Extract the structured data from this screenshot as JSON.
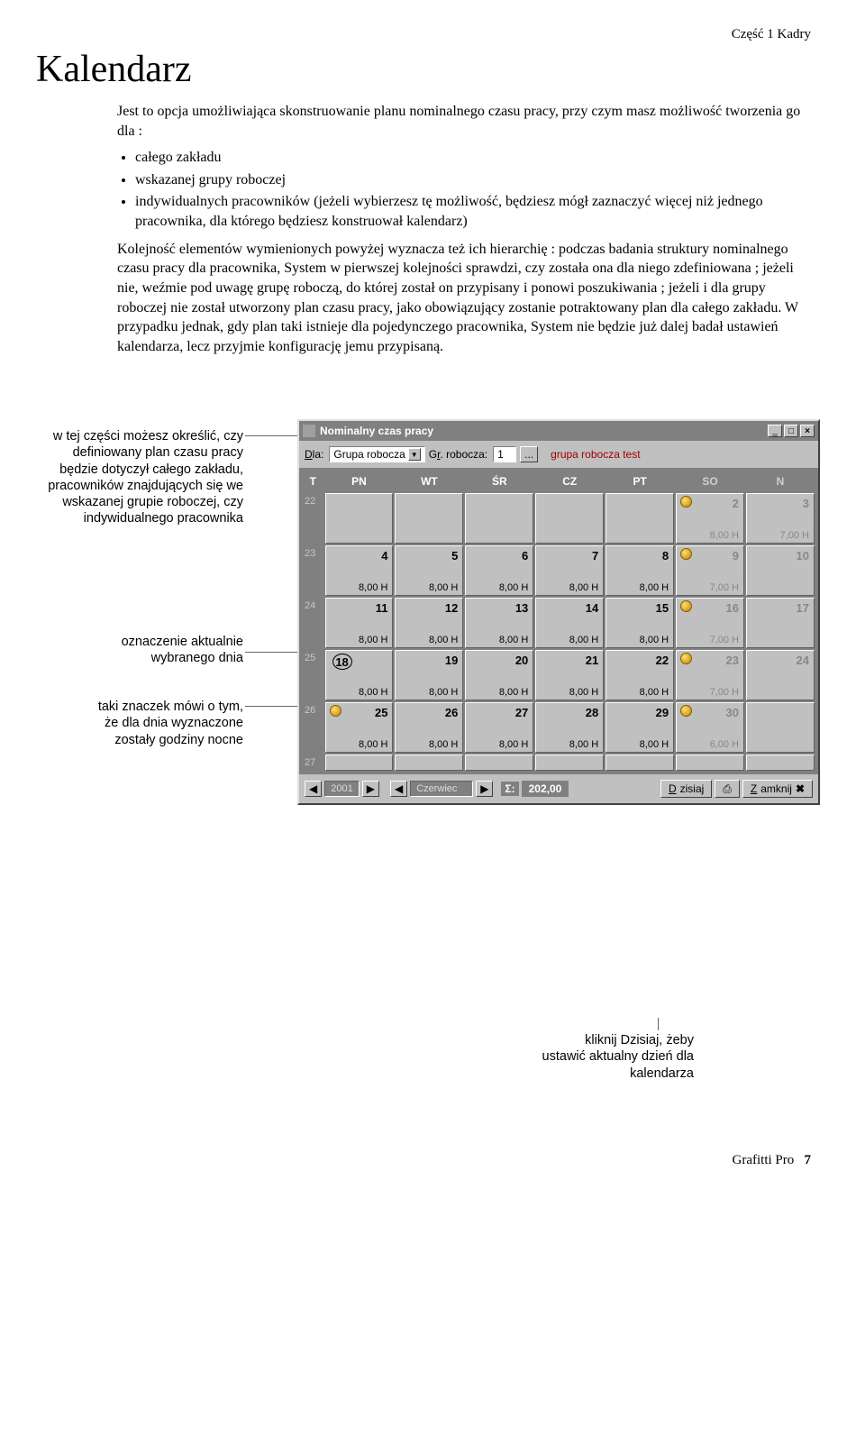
{
  "header": {
    "section": "Część 1 Kadry"
  },
  "title": "Kalendarz",
  "intro": "Jest to opcja umożliwiająca skonstruowanie planu nominalnego czasu pracy, przy czym masz możliwość tworzenia go dla :",
  "bullets": [
    "całego zakładu",
    "wskazanej grupy roboczej",
    "indywidualnych pracowników (jeżeli wybierzesz tę możliwość, będziesz mógł zaznaczyć więcej niż jednego pracownika, dla którego będziesz konstruował kalendarz)"
  ],
  "para": "Kolejność elementów wymienionych powyżej wyznacza też ich hierarchię : podczas badania struktury nominalnego czasu pracy dla pracownika, System w pierwszej kolejności sprawdzi, czy została ona dla niego zdefiniowana ; jeżeli nie, weźmie pod uwagę grupę roboczą, do której został on przypisany i ponowi poszukiwania ; jeżeli i dla grupy roboczej nie został utworzony plan czasu pracy, jako obowiązujący zostanie potraktowany plan dla całego zakładu. W przypadku jednak, gdy plan taki istnieje dla pojedynczego pracownika, System nie będzie już dalej badał ustawień kalendarza, lecz przyjmie konfigurację jemu przypisaną.",
  "callouts": {
    "c1": "w tej części możesz określić, czy definiowany plan czasu pracy będzie dotyczył całego zakładu, pracowników znajdujących się we wskazanej grupie roboczej, czy indywidualnego pracownika",
    "c2": "oznaczenie aktualnie wybranego dnia",
    "c3": "taki znaczek mówi o tym, że dla dnia wyznaczone zostały godziny nocne",
    "c4": "kliknij Dzisiaj, żeby ustawić aktualny dzień dla kalendarza"
  },
  "window": {
    "title": "Nominalny czas pracy",
    "toolbar": {
      "dla_label": "Dla:",
      "dla_value": "Grupa robocza",
      "gr_label": "Gr. robocza:",
      "gr_value": "1",
      "pick": "...",
      "group_name": "grupa robocza test"
    },
    "days_header": [
      "T",
      "PN",
      "WT",
      "ŚR",
      "CZ",
      "PT",
      "SO",
      "N"
    ],
    "weeks": [
      {
        "wk": "22",
        "cells": [
          {
            "num": "",
            "hours": "",
            "wknd": false
          },
          {
            "num": "",
            "hours": "",
            "wknd": false
          },
          {
            "num": "",
            "hours": "",
            "wknd": false
          },
          {
            "num": "",
            "hours": "",
            "wknd": false
          },
          {
            "num": "",
            "hours": "",
            "wknd": false
          },
          {
            "num": "2",
            "hours": "8,00 H",
            "wknd": true,
            "night": true
          },
          {
            "num": "3",
            "hours": "7,00 H",
            "wknd": true
          }
        ]
      },
      {
        "wk": "23",
        "cells": [
          {
            "num": "4",
            "hours": "8,00 H"
          },
          {
            "num": "5",
            "hours": "8,00 H"
          },
          {
            "num": "6",
            "hours": "8,00 H"
          },
          {
            "num": "7",
            "hours": "8,00 H"
          },
          {
            "num": "8",
            "hours": "8,00 H"
          },
          {
            "num": "9",
            "hours": "7,00 H",
            "wknd": true,
            "night": true
          },
          {
            "num": "10",
            "hours": "",
            "wknd": true
          }
        ]
      },
      {
        "wk": "24",
        "cells": [
          {
            "num": "11",
            "hours": "8,00 H"
          },
          {
            "num": "12",
            "hours": "8,00 H"
          },
          {
            "num": "13",
            "hours": "8,00 H"
          },
          {
            "num": "14",
            "hours": "8,00 H"
          },
          {
            "num": "15",
            "hours": "8,00 H"
          },
          {
            "num": "16",
            "hours": "7,00 H",
            "wknd": true,
            "night": true
          },
          {
            "num": "17",
            "hours": "",
            "wknd": true
          }
        ]
      },
      {
        "wk": "25",
        "cells": [
          {
            "num": "18",
            "hours": "8,00 H",
            "sel": true
          },
          {
            "num": "19",
            "hours": "8,00 H"
          },
          {
            "num": "20",
            "hours": "8,00 H"
          },
          {
            "num": "21",
            "hours": "8,00 H"
          },
          {
            "num": "22",
            "hours": "8,00 H"
          },
          {
            "num": "23",
            "hours": "7,00 H",
            "wknd": true,
            "night": true
          },
          {
            "num": "24",
            "hours": "",
            "wknd": true
          }
        ]
      },
      {
        "wk": "26",
        "cells": [
          {
            "num": "25",
            "hours": "8,00 H",
            "night": true
          },
          {
            "num": "26",
            "hours": "8,00 H"
          },
          {
            "num": "27",
            "hours": "8,00 H"
          },
          {
            "num": "28",
            "hours": "8,00 H"
          },
          {
            "num": "29",
            "hours": "8,00 H"
          },
          {
            "num": "30",
            "hours": "6,00 H",
            "wknd": true,
            "night": true
          },
          {
            "num": "",
            "hours": "",
            "wknd": true
          }
        ]
      },
      {
        "wk": "27",
        "cells": [
          {
            "num": "",
            "hours": ""
          },
          {
            "num": "",
            "hours": ""
          },
          {
            "num": "",
            "hours": ""
          },
          {
            "num": "",
            "hours": ""
          },
          {
            "num": "",
            "hours": ""
          },
          {
            "num": "",
            "hours": "",
            "wknd": true
          },
          {
            "num": "",
            "hours": "",
            "wknd": true
          }
        ]
      }
    ],
    "bottombar": {
      "year": "2001",
      "month": "Czerwiec",
      "sigma": "Σ:",
      "total": "202,00",
      "today": "Dzisiaj",
      "close": "Zamknij"
    }
  },
  "footer": {
    "product": "Grafitti Pro",
    "page": "7"
  },
  "colors": {
    "win_bg": "#c0c0c0",
    "titlebar": "#808080",
    "grid_bg": "#808080",
    "group_name": "#a00000"
  }
}
